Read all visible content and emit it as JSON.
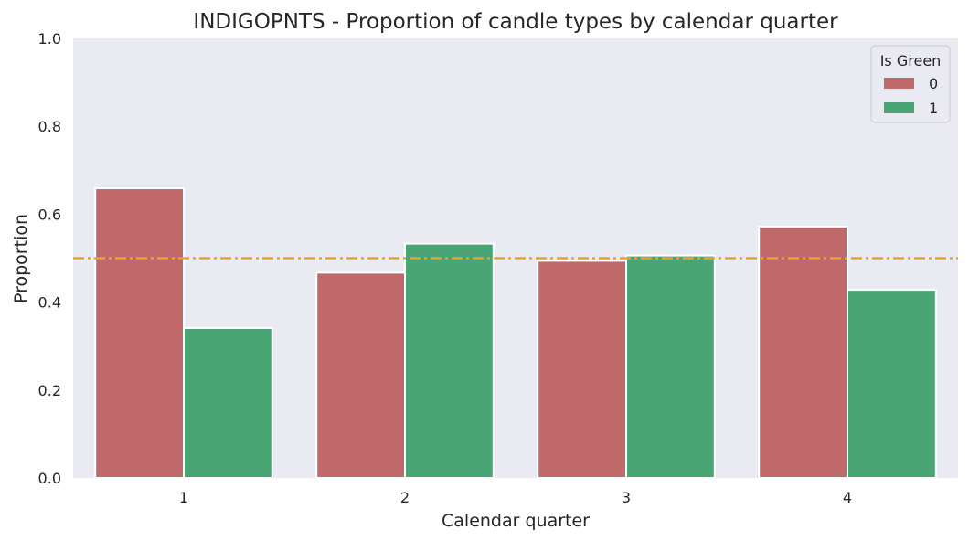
{
  "chart_data": {
    "type": "bar",
    "title": "INDIGOPNTS - Proportion of candle types by calendar quarter",
    "xlabel": "Calendar quarter",
    "ylabel": "Proportion",
    "categories": [
      "1",
      "2",
      "3",
      "4"
    ],
    "ylim": [
      0,
      1.0
    ],
    "yticks": [
      "0.0",
      "0.2",
      "0.4",
      "0.6",
      "0.8",
      "1.0"
    ],
    "grid": false,
    "legend": {
      "title": "Is Green",
      "placement": "top-right"
    },
    "series": [
      {
        "name": "0",
        "color": "#c0696b",
        "values": [
          0.659,
          0.467,
          0.494,
          0.572
        ]
      },
      {
        "name": "1",
        "color": "#4aa574",
        "values": [
          0.341,
          0.533,
          0.506,
          0.428
        ]
      }
    ],
    "reference_line": {
      "y": 0.5,
      "color": "#e8a22c",
      "style": "dash-dot"
    },
    "background_color": "#eaeaf2"
  }
}
